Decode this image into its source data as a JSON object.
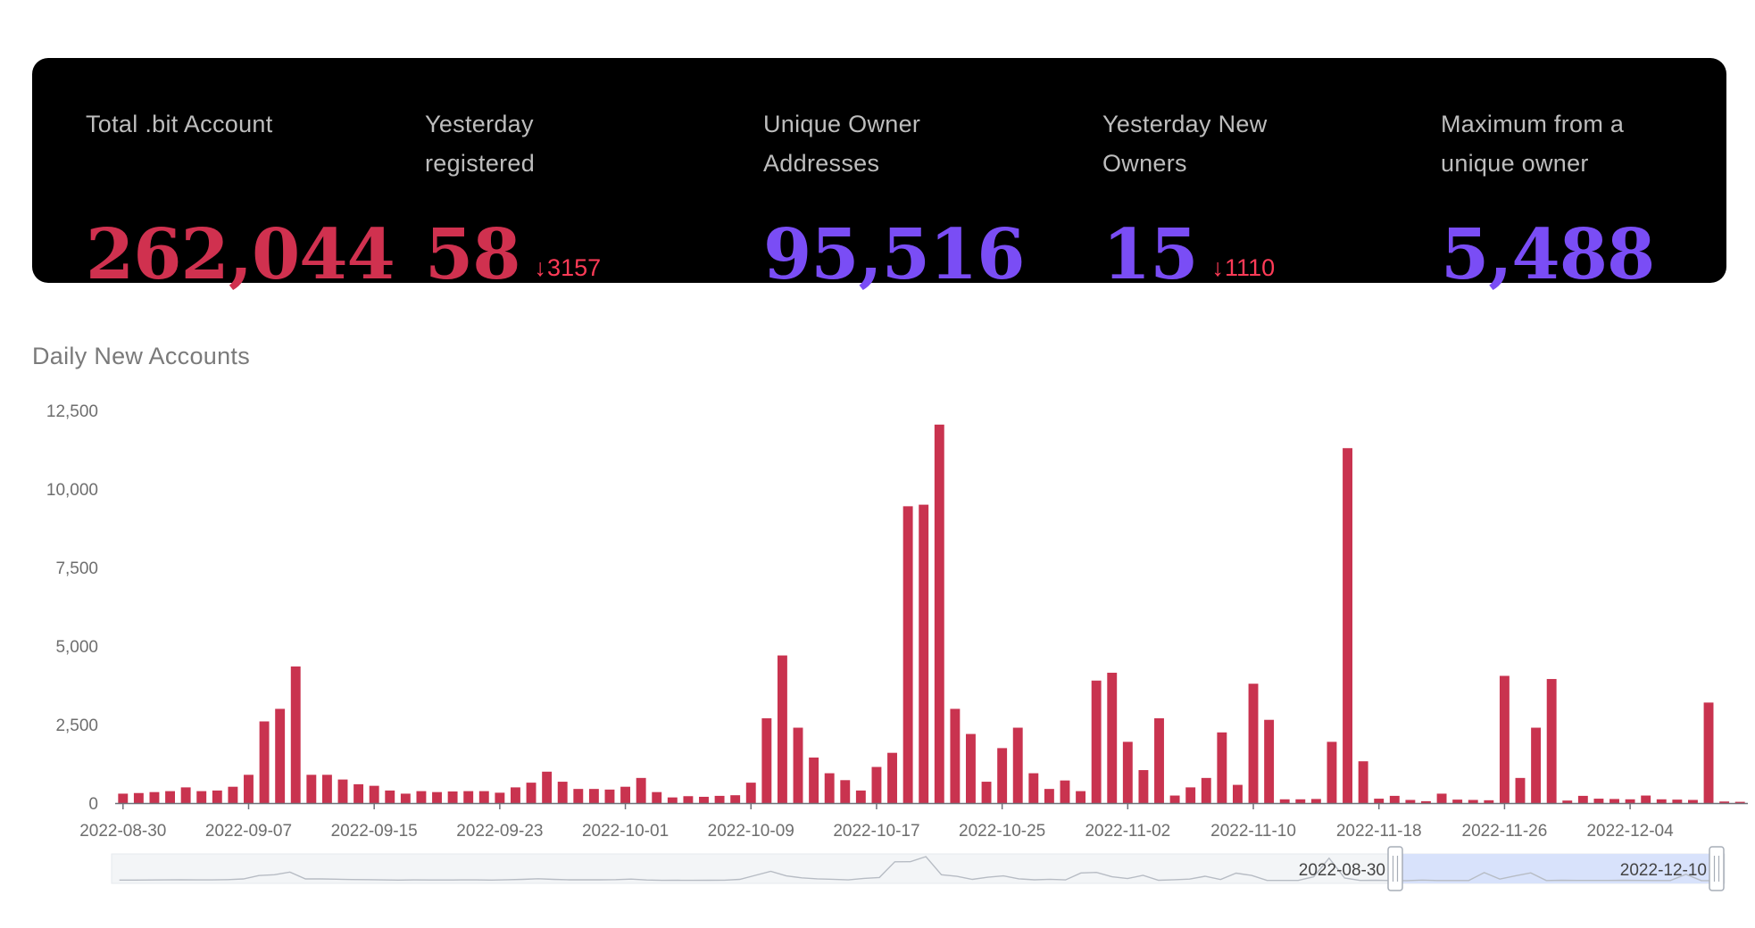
{
  "stats": [
    {
      "label": "Total .bit Account",
      "value": "262,044",
      "color": "#d0314f",
      "delta": ""
    },
    {
      "label": "Yesterday registered",
      "value": "58",
      "color": "#d0314f",
      "delta": "3157"
    },
    {
      "label": "Unique Owner Addresses",
      "value": "95,516",
      "color": "#7a4df5",
      "delta": ""
    },
    {
      "label": "Yesterday New Owners",
      "value": "15",
      "color": "#7a4df5",
      "delta": "1110"
    },
    {
      "label": "Maximum from a unique owner",
      "value": "5,488",
      "color": "#7a4df5",
      "delta": ""
    }
  ],
  "chart_title": "Daily New Accounts",
  "chart_data": {
    "type": "bar",
    "title": "Daily New Accounts",
    "xlabel": "",
    "ylabel": "",
    "ylim": [
      0,
      12500
    ],
    "yticks": [
      "0",
      "2,500",
      "5,000",
      "7,500",
      "10,000",
      "12,500"
    ],
    "xtick_labels": [
      "2022-08-30",
      "2022-09-07",
      "2022-09-15",
      "2022-09-23",
      "2022-10-01",
      "2022-10-09",
      "2022-10-17",
      "2022-10-25",
      "2022-11-02",
      "2022-11-10",
      "2022-11-18",
      "2022-11-26",
      "2022-12-04"
    ],
    "bar_color": "#c9334f",
    "grid": false,
    "start_date": "2022-08-30",
    "end_date": "2022-12-10",
    "values": [
      300,
      320,
      350,
      380,
      500,
      380,
      400,
      520,
      900,
      2600,
      3000,
      4350,
      900,
      900,
      750,
      600,
      550,
      400,
      300,
      380,
      350,
      370,
      380,
      380,
      330,
      500,
      650,
      1000,
      680,
      450,
      450,
      430,
      520,
      800,
      350,
      180,
      220,
      200,
      230,
      250,
      650,
      2700,
      4700,
      2400,
      1450,
      950,
      730,
      400,
      1150,
      1600,
      9450,
      9500,
      12050,
      3000,
      2200,
      680,
      1750,
      2400,
      950,
      450,
      720,
      380,
      3900,
      4150,
      1950,
      1050,
      2700,
      240,
      500,
      800,
      2250,
      580,
      3800,
      2650,
      120,
      120,
      130,
      1950,
      11300,
      1330,
      140,
      230,
      100,
      60,
      300,
      110,
      100,
      90,
      4050,
      800,
      2400,
      3950,
      80,
      230,
      140,
      130,
      120,
      240,
      120,
      110,
      100,
      3200,
      50,
      40
    ],
    "zoom": {
      "start_label": "2022-08-30",
      "end_label": "2022-12-10"
    }
  }
}
